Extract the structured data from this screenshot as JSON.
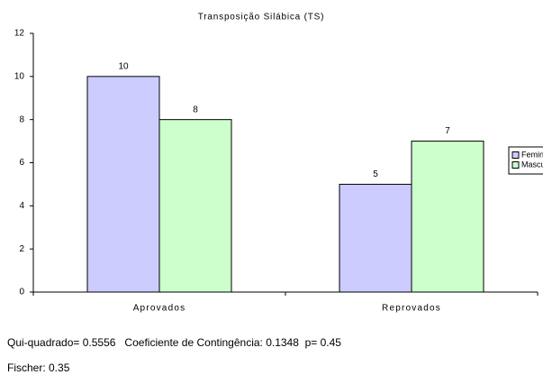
{
  "chart_data": {
    "type": "bar",
    "title": "Transposição Silábica (TS)",
    "categories": [
      "Aprovados",
      "Reprovados"
    ],
    "series": [
      {
        "name": "Feminino",
        "color": "#ccccff",
        "values": [
          10,
          5
        ]
      },
      {
        "name": "Masculino",
        "color": "#ccffcc",
        "values": [
          8,
          7
        ]
      }
    ],
    "ylim": [
      0,
      12
    ],
    "yticks": [
      0,
      2,
      4,
      6,
      8,
      10,
      12
    ],
    "grid": false,
    "legend": "right",
    "notes": [
      "Qui-quadrado= 0.5556   Coeficiente de Contingência: 0.1348  p= 0.45",
      "Fischer: 0.35"
    ]
  }
}
